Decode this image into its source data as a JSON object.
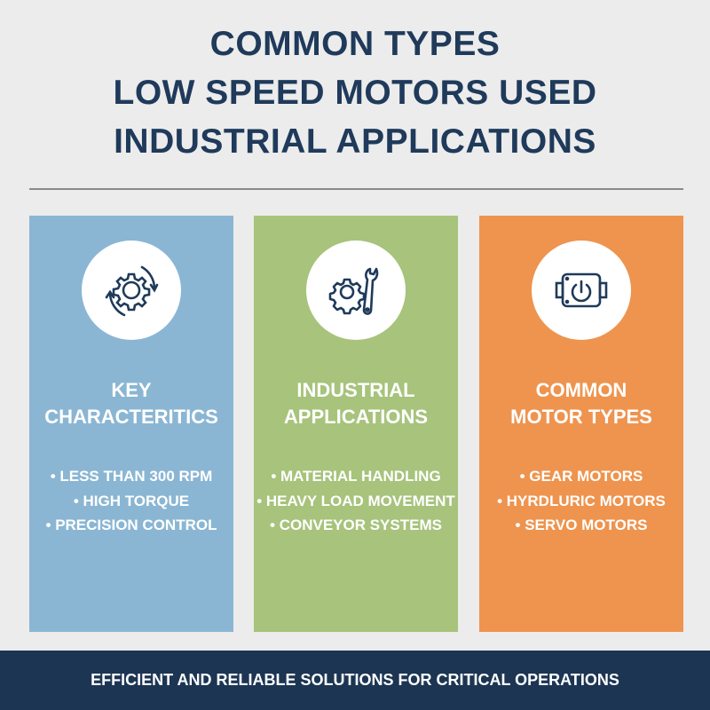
{
  "title": {
    "lines": [
      "COMMON TYPES",
      "LOW SPEED MOTORS USED",
      "INDUSTRIAL APPLICATIONS"
    ],
    "color": "#1f3a5a"
  },
  "columns": [
    {
      "icon": "gear-rotate-icon",
      "color": "#8ab6d3",
      "heading": [
        "KEY",
        "CHARACTERITICS"
      ],
      "items": [
        "• LESS THAN 300 RPM",
        "• HIGH TORQUE",
        "• PRECISION CONTROL"
      ]
    },
    {
      "icon": "gear-wrench-icon",
      "color": "#a7c37c",
      "heading": [
        "INDUSTRIAL",
        "APPLICATIONS"
      ],
      "items": [
        "• MATERIAL HANDLING",
        "• HEAVY LOAD MOVEMENT",
        "• CONVEYOR SYSTEMS"
      ]
    },
    {
      "icon": "motor-power-icon",
      "color": "#ee944f",
      "heading": [
        "COMMON",
        "MOTOR TYPES"
      ],
      "items": [
        "• GEAR MOTORS",
        "• HYRDLURIC MOTORS",
        "• SERVO MOTORS"
      ]
    }
  ],
  "footer": {
    "text": "EFFICIENT AND RELIABLE SOLUTIONS FOR CRITICAL OPERATIONS",
    "color": "#1c3553"
  }
}
